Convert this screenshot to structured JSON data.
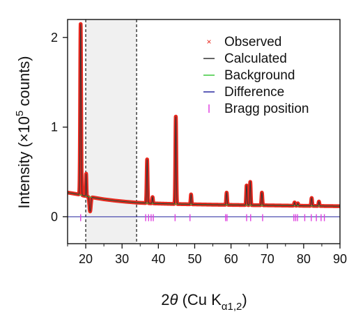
{
  "chart_data": {
    "type": "line",
    "title": "",
    "xlabel": {
      "prefix": "2",
      "theta": "θ",
      "middle": " (Cu K",
      "subscript": "α1,2",
      "suffix": ")"
    },
    "ylabel": {
      "main": "Intensity (×10",
      "exponent": "5",
      "suffix": " counts)"
    },
    "xlim": [
      15,
      90
    ],
    "ylim": [
      -0.3,
      2.2
    ],
    "xticks": [
      20,
      30,
      40,
      50,
      60,
      70,
      80,
      90
    ],
    "xtick_labels": [
      "20",
      "30",
      "40",
      "50",
      "60",
      "70",
      "80",
      "90"
    ],
    "yticks": [
      0,
      1,
      2
    ],
    "ytick_labels": [
      "0",
      "1",
      "2"
    ],
    "shaded_region": {
      "x_range": [
        20,
        34
      ],
      "color": "#f0f0f0"
    },
    "vertical_dashed_lines": [
      20,
      34
    ],
    "grid": false,
    "legend": {
      "placement": "top-right",
      "entries": [
        {
          "label": "Observed",
          "marker": "×",
          "color": "#e8281e"
        },
        {
          "label": "Calculated",
          "marker": "line",
          "color": "#333333"
        },
        {
          "label": "Background",
          "marker": "line",
          "color": "#3cc83c"
        },
        {
          "label": "Difference",
          "marker": "line",
          "color": "#2828a0"
        },
        {
          "label": "Bragg position",
          "marker": "|",
          "color": "#e040e0"
        }
      ]
    },
    "background_points": [
      {
        "x": 15,
        "y": 0.27
      },
      {
        "x": 18,
        "y": 0.25
      },
      {
        "x": 20,
        "y": 0.23
      },
      {
        "x": 22,
        "y": 0.215
      },
      {
        "x": 25,
        "y": 0.195
      },
      {
        "x": 28,
        "y": 0.18
      },
      {
        "x": 31,
        "y": 0.168
      },
      {
        "x": 34,
        "y": 0.158
      },
      {
        "x": 38,
        "y": 0.15
      },
      {
        "x": 45,
        "y": 0.142
      },
      {
        "x": 55,
        "y": 0.135
      },
      {
        "x": 65,
        "y": 0.13
      },
      {
        "x": 75,
        "y": 0.125
      },
      {
        "x": 85,
        "y": 0.12
      },
      {
        "x": 90,
        "y": 0.118
      }
    ],
    "peaks": [
      {
        "x": 18.6,
        "height": 2.15,
        "width": 0.28
      },
      {
        "x": 20.1,
        "height": 0.48,
        "width": 0.18
      },
      {
        "x": 21.2,
        "height": 0.06,
        "width": 0.4
      },
      {
        "x": 36.9,
        "height": 0.64,
        "width": 0.26
      },
      {
        "x": 38.4,
        "height": 0.22,
        "width": 0.22
      },
      {
        "x": 44.8,
        "height": 1.12,
        "width": 0.26
      },
      {
        "x": 49.0,
        "height": 0.25,
        "width": 0.24
      },
      {
        "x": 58.8,
        "height": 0.27,
        "width": 0.26
      },
      {
        "x": 64.3,
        "height": 0.35,
        "width": 0.26
      },
      {
        "x": 65.3,
        "height": 0.39,
        "width": 0.26
      },
      {
        "x": 68.5,
        "height": 0.27,
        "width": 0.26
      },
      {
        "x": 77.5,
        "height": 0.16,
        "width": 0.26
      },
      {
        "x": 78.4,
        "height": 0.15,
        "width": 0.26
      },
      {
        "x": 82.2,
        "height": 0.21,
        "width": 0.26
      },
      {
        "x": 84.2,
        "height": 0.17,
        "width": 0.26
      }
    ],
    "bragg_positions": [
      18.6,
      36.5,
      37.3,
      38.0,
      38.6,
      44.6,
      48.7,
      58.5,
      58.9,
      64.3,
      65.4,
      68.7,
      77.3,
      77.8,
      78.3,
      80.3,
      82.1,
      83.5,
      84.8,
      85.7
    ],
    "bragg_y": -0.01,
    "difference_y": 0.0
  }
}
